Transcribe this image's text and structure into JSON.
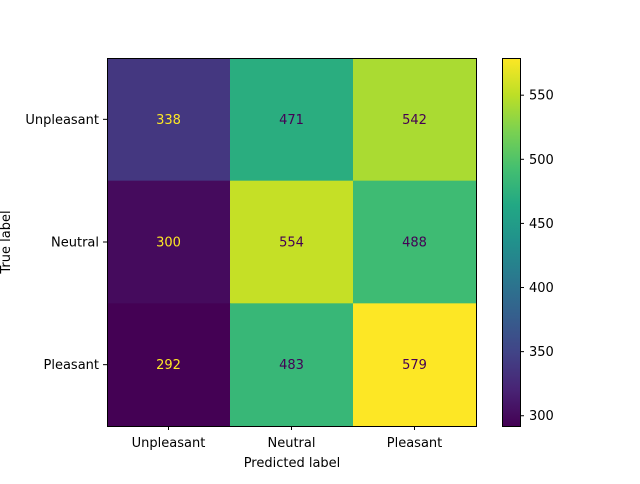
{
  "chart_data": {
    "type": "heatmap",
    "title": "",
    "xlabel": "Predicted label",
    "ylabel": "True label",
    "x_categories": [
      "Unpleasant",
      "Neutral",
      "Pleasant"
    ],
    "y_categories": [
      "Unpleasant",
      "Neutral",
      "Pleasant"
    ],
    "values": [
      [
        338,
        471,
        542
      ],
      [
        300,
        554,
        488
      ],
      [
        292,
        483,
        579
      ]
    ],
    "colormap": "viridis",
    "colorbar": {
      "ticks": [
        300,
        350,
        400,
        450,
        500,
        550
      ],
      "tick_labels": [
        "300",
        "350",
        "400",
        "450",
        "500",
        "550"
      ],
      "range": [
        292,
        579
      ]
    },
    "text_colors": {
      "on_dark": "#fde725",
      "on_light": "#440154"
    },
    "grid": false
  }
}
